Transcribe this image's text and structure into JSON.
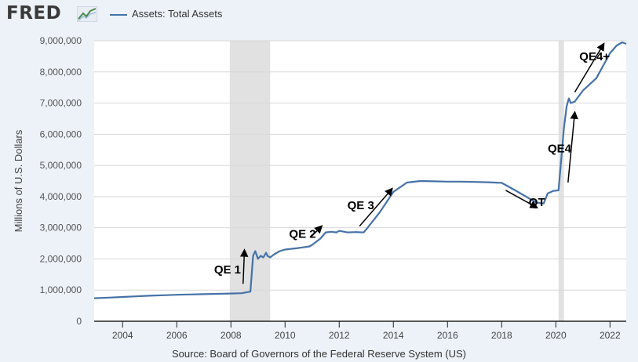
{
  "header": {
    "logo_text": "FRED",
    "logo_icon": "trend-chart-icon"
  },
  "legend": {
    "label": "Assets: Total Assets"
  },
  "source": "Source: Board of Governors of the Federal Reserve System (US)",
  "colors": {
    "series": "#4572a7",
    "background": "#ecf2f8",
    "plot_background": "#ffffff",
    "recession": "#e1e1e1",
    "annotation": "#000000"
  },
  "chart_data": {
    "type": "line",
    "title": "",
    "xlabel": "",
    "ylabel": "Millions of U.S. Dollars",
    "xlim": [
      2002.95,
      2022.6
    ],
    "ylim": [
      0,
      9000000
    ],
    "x_ticks": [
      "2004",
      "2006",
      "2008",
      "2010",
      "2012",
      "2014",
      "2016",
      "2018",
      "2020",
      "2022"
    ],
    "y_ticks": [
      "0",
      "1,000,000",
      "2,000,000",
      "3,000,000",
      "4,000,000",
      "5,000,000",
      "6,000,000",
      "7,000,000",
      "8,000,000",
      "9,000,000"
    ],
    "grid": "horizontal",
    "recessions": [
      [
        2007.96,
        2009.45
      ],
      [
        2020.1,
        2020.3
      ]
    ],
    "series": [
      {
        "name": "Assets: Total Assets",
        "x": [
          2002.95,
          2003.5,
          2004,
          2004.5,
          2005,
          2005.5,
          2006,
          2006.5,
          2007,
          2007.5,
          2008,
          2008.4,
          2008.72,
          2008.82,
          2008.9,
          2009.0,
          2009.1,
          2009.2,
          2009.3,
          2009.35,
          2009.45,
          2009.6,
          2009.8,
          2010,
          2010.5,
          2010.9,
          2011.0,
          2011.3,
          2011.5,
          2011.7,
          2011.9,
          2012,
          2012.3,
          2012.6,
          2012.9,
          2013,
          2013.5,
          2014,
          2014.5,
          2015,
          2015.5,
          2016,
          2016.5,
          2017,
          2017.5,
          2018,
          2018.5,
          2019,
          2019.3,
          2019.55,
          2019.7,
          2019.9,
          2020.1,
          2020.2,
          2020.3,
          2020.4,
          2020.48,
          2020.55,
          2020.7,
          2021,
          2021.5,
          2022,
          2022.25,
          2022.45,
          2022.6
        ],
        "y": [
          740000,
          760000,
          780000,
          800000,
          820000,
          835000,
          850000,
          860000,
          870000,
          880000,
          890000,
          900000,
          950000,
          2100000,
          2250000,
          2000000,
          2100000,
          2050000,
          2200000,
          2100000,
          2050000,
          2150000,
          2250000,
          2300000,
          2350000,
          2400000,
          2450000,
          2650000,
          2850000,
          2870000,
          2850000,
          2900000,
          2850000,
          2860000,
          2850000,
          2950000,
          3500000,
          4150000,
          4450000,
          4500000,
          4490000,
          4480000,
          4480000,
          4470000,
          4460000,
          4440000,
          4200000,
          3950000,
          3800000,
          3780000,
          4100000,
          4180000,
          4200000,
          5200000,
          6200000,
          6900000,
          7150000,
          7000000,
          7050000,
          7400000,
          7800000,
          8600000,
          8850000,
          8950000,
          8900000
        ]
      }
    ],
    "annotations": [
      {
        "text": "QE 1",
        "label_x": 2007.38,
        "label_y": 1530000,
        "arrow": [
          [
            2008.45,
            1200000
          ],
          [
            2008.5,
            2280000
          ]
        ]
      },
      {
        "text": "QE 2",
        "label_x": 2010.15,
        "label_y": 2680000,
        "arrow": [
          [
            2010.95,
            2700000
          ],
          [
            2011.35,
            3050000
          ]
        ]
      },
      {
        "text": "QE 3",
        "label_x": 2012.3,
        "label_y": 3600000,
        "arrow": [
          [
            2012.75,
            3050000
          ],
          [
            2013.95,
            4250000
          ]
        ]
      },
      {
        "text": "QT",
        "label_x": 2019.0,
        "label_y": 3700000,
        "arrow": [
          [
            2018.15,
            4200000
          ],
          [
            2019.3,
            3650000
          ]
        ]
      },
      {
        "text": "QE4",
        "label_x": 2019.7,
        "label_y": 5420000,
        "arrow": [
          [
            2020.45,
            4450000
          ],
          [
            2020.7,
            6700000
          ]
        ]
      },
      {
        "text": "QE4+",
        "label_x": 2020.87,
        "label_y": 8370000,
        "arrow": [
          [
            2020.7,
            7350000
          ],
          [
            2021.77,
            8900000
          ]
        ]
      }
    ]
  }
}
